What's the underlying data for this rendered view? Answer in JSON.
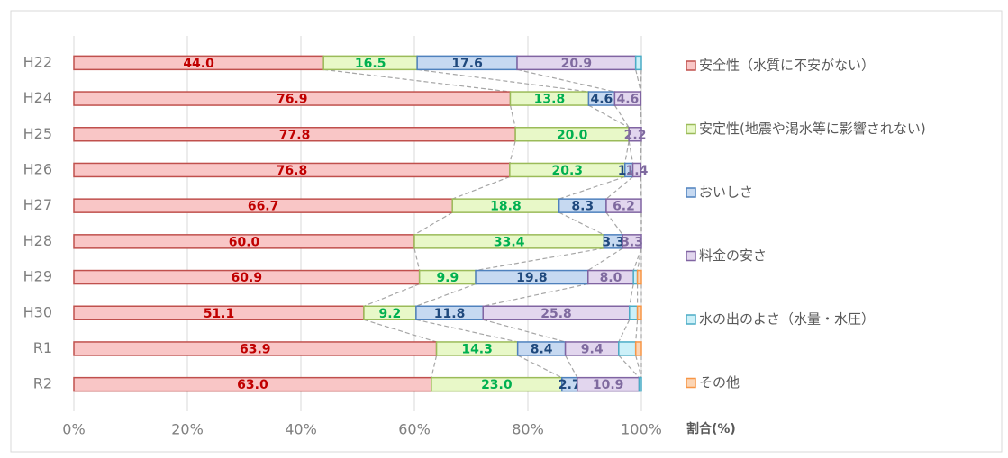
{
  "chart_data": {
    "type": "stacked_barh",
    "xlabel": "割合(%)",
    "categories": [
      "H22",
      "H24",
      "H25",
      "H26",
      "H27",
      "H28",
      "H29",
      "H30",
      "R1",
      "R2"
    ],
    "xlim": [
      0,
      100
    ],
    "xticks": [
      {
        "value": 0,
        "label": "0%"
      },
      {
        "value": 20,
        "label": "20%"
      },
      {
        "value": 40,
        "label": "40%"
      },
      {
        "value": 60,
        "label": "60%"
      },
      {
        "value": 80,
        "label": "80%"
      },
      {
        "value": 100,
        "label": "100%"
      }
    ],
    "grid": true,
    "legend": "right",
    "series": [
      {
        "name": "安全性（水質に不安がない）",
        "color": "#f9c6c6",
        "edge": "#c0504d",
        "label_color": "#c00000",
        "values": [
          44.0,
          76.9,
          77.8,
          76.8,
          66.7,
          60.0,
          60.9,
          51.1,
          63.9,
          63.0
        ],
        "value_labels": [
          "44.0",
          "76.9",
          "77.8",
          "76.8",
          "66.7",
          "60.0",
          "60.9",
          "51.1",
          "63.9",
          "63.0"
        ]
      },
      {
        "name": "安定性(地震や渇水等に影響されない)",
        "color": "#e8f8c8",
        "edge": "#9bbb59",
        "label_color": "#00b050",
        "values": [
          16.5,
          13.8,
          20.0,
          20.3,
          18.8,
          33.4,
          9.9,
          9.2,
          14.3,
          23.0
        ],
        "value_labels": [
          "16.5",
          "13.8",
          "20.0",
          "20.3",
          "18.8",
          "33.4",
          "9.9",
          "9.2",
          "14.3",
          "23.0"
        ]
      },
      {
        "name": "おいしさ",
        "color": "#c6d9f1",
        "edge": "#4f81bd",
        "label_color": "#1f497d",
        "values": [
          17.6,
          4.6,
          0,
          1.4,
          8.3,
          3.3,
          19.8,
          11.8,
          8.4,
          2.7
        ],
        "value_labels": [
          "17.6",
          "4.6",
          null,
          "1.4",
          "8.3",
          "3.3",
          "19.8",
          "11.8",
          "8.4",
          "2.7"
        ]
      },
      {
        "name": "料金の安さ",
        "color": "#e2d6ee",
        "edge": "#8064a2",
        "label_color": "#7f6a9f",
        "values": [
          20.9,
          4.6,
          2.2,
          1.4,
          6.2,
          3.3,
          8.0,
          25.8,
          9.4,
          10.9
        ],
        "value_labels": [
          "20.9",
          "4.6",
          "2.2",
          "1.4",
          "6.2",
          "3.3",
          "8.0",
          "25.8",
          "9.4",
          "10.9"
        ]
      },
      {
        "name": "水の出のよさ（水量・水圧）",
        "color": "#ccf0f8",
        "edge": "#4bacc6",
        "label_color": "#31859c",
        "values": [
          1.0,
          0,
          0,
          0,
          0,
          0,
          0.7,
          1.4,
          3.0,
          0.4
        ],
        "value_labels": [
          null,
          null,
          null,
          null,
          null,
          null,
          null,
          null,
          null,
          null
        ]
      },
      {
        "name": "その他",
        "color": "#fcd5b4",
        "edge": "#f79646",
        "label_color": "#e46c0a",
        "values": [
          0,
          0,
          0,
          0,
          0,
          0,
          0.7,
          0.7,
          1.0,
          0
        ],
        "value_labels": [
          null,
          null,
          null,
          null,
          null,
          null,
          null,
          null,
          null,
          null
        ]
      }
    ]
  }
}
